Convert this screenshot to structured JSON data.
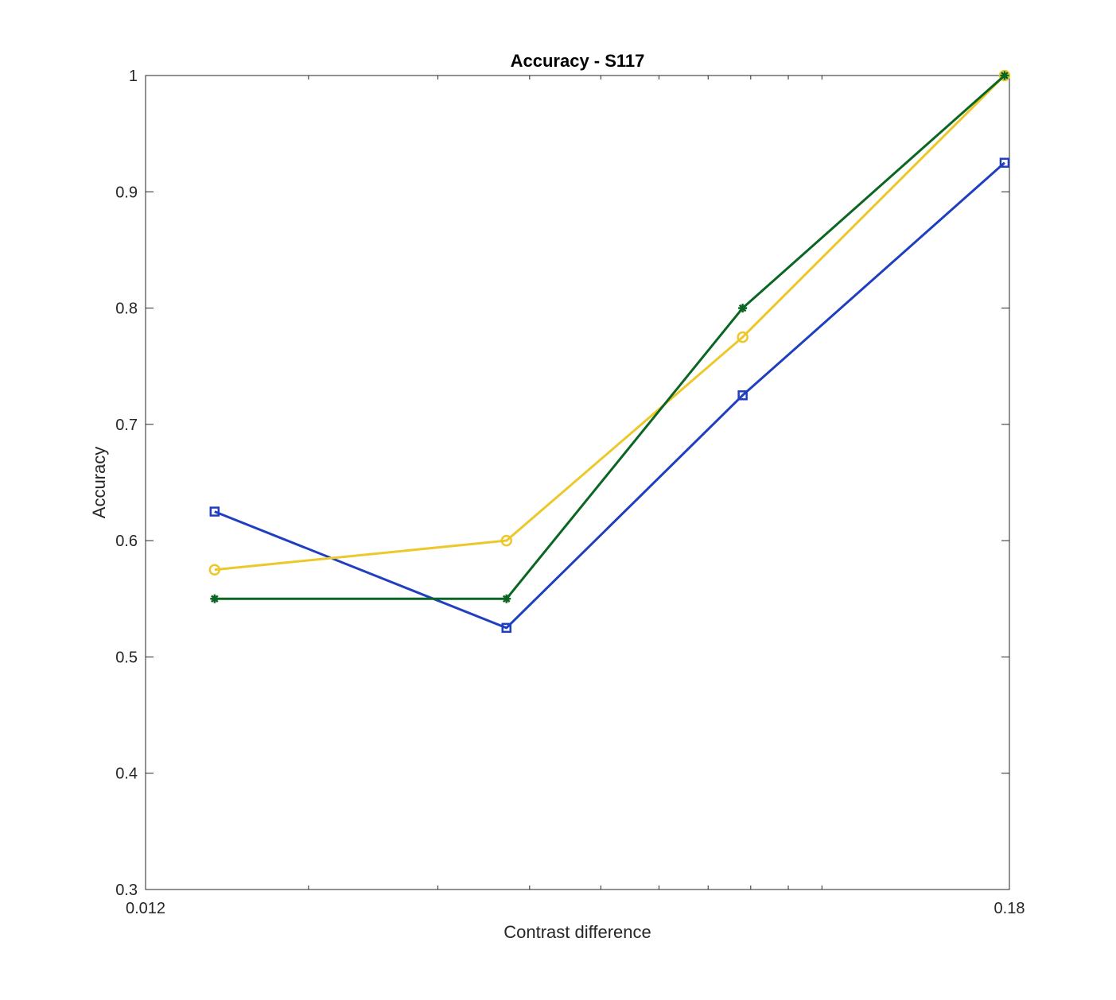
{
  "chart_data": {
    "type": "line",
    "title": "Accuracy - S117",
    "xlabel": "Contrast difference",
    "ylabel": "Accuracy",
    "xscale": "log",
    "xlim": [
      0.012,
      0.18
    ],
    "ylim": [
      0.3,
      1
    ],
    "xticks": [
      0.012,
      0.18
    ],
    "xtick_labels": [
      "0.012",
      "0.18"
    ],
    "yticks": [
      0.3,
      0.4,
      0.5,
      0.6,
      0.7,
      0.8,
      0.9,
      1
    ],
    "ytick_labels": [
      "0.3",
      "0.4",
      "0.5",
      "0.6",
      "0.7",
      "0.8",
      "0.9",
      "1"
    ],
    "grid": false,
    "x": [
      0.0149,
      0.0372,
      0.078,
      0.1773
    ],
    "series": [
      {
        "values": [
          0.625,
          0.525,
          0.725,
          0.925
        ],
        "color": "#1f3fc0",
        "marker": "square"
      },
      {
        "values": [
          0.575,
          0.6,
          0.775,
          1.0
        ],
        "color": "#edc82a",
        "marker": "circle"
      },
      {
        "values": [
          0.55,
          0.55,
          0.8,
          1.0
        ],
        "color": "#0b6623",
        "marker": "asterisk"
      }
    ]
  }
}
